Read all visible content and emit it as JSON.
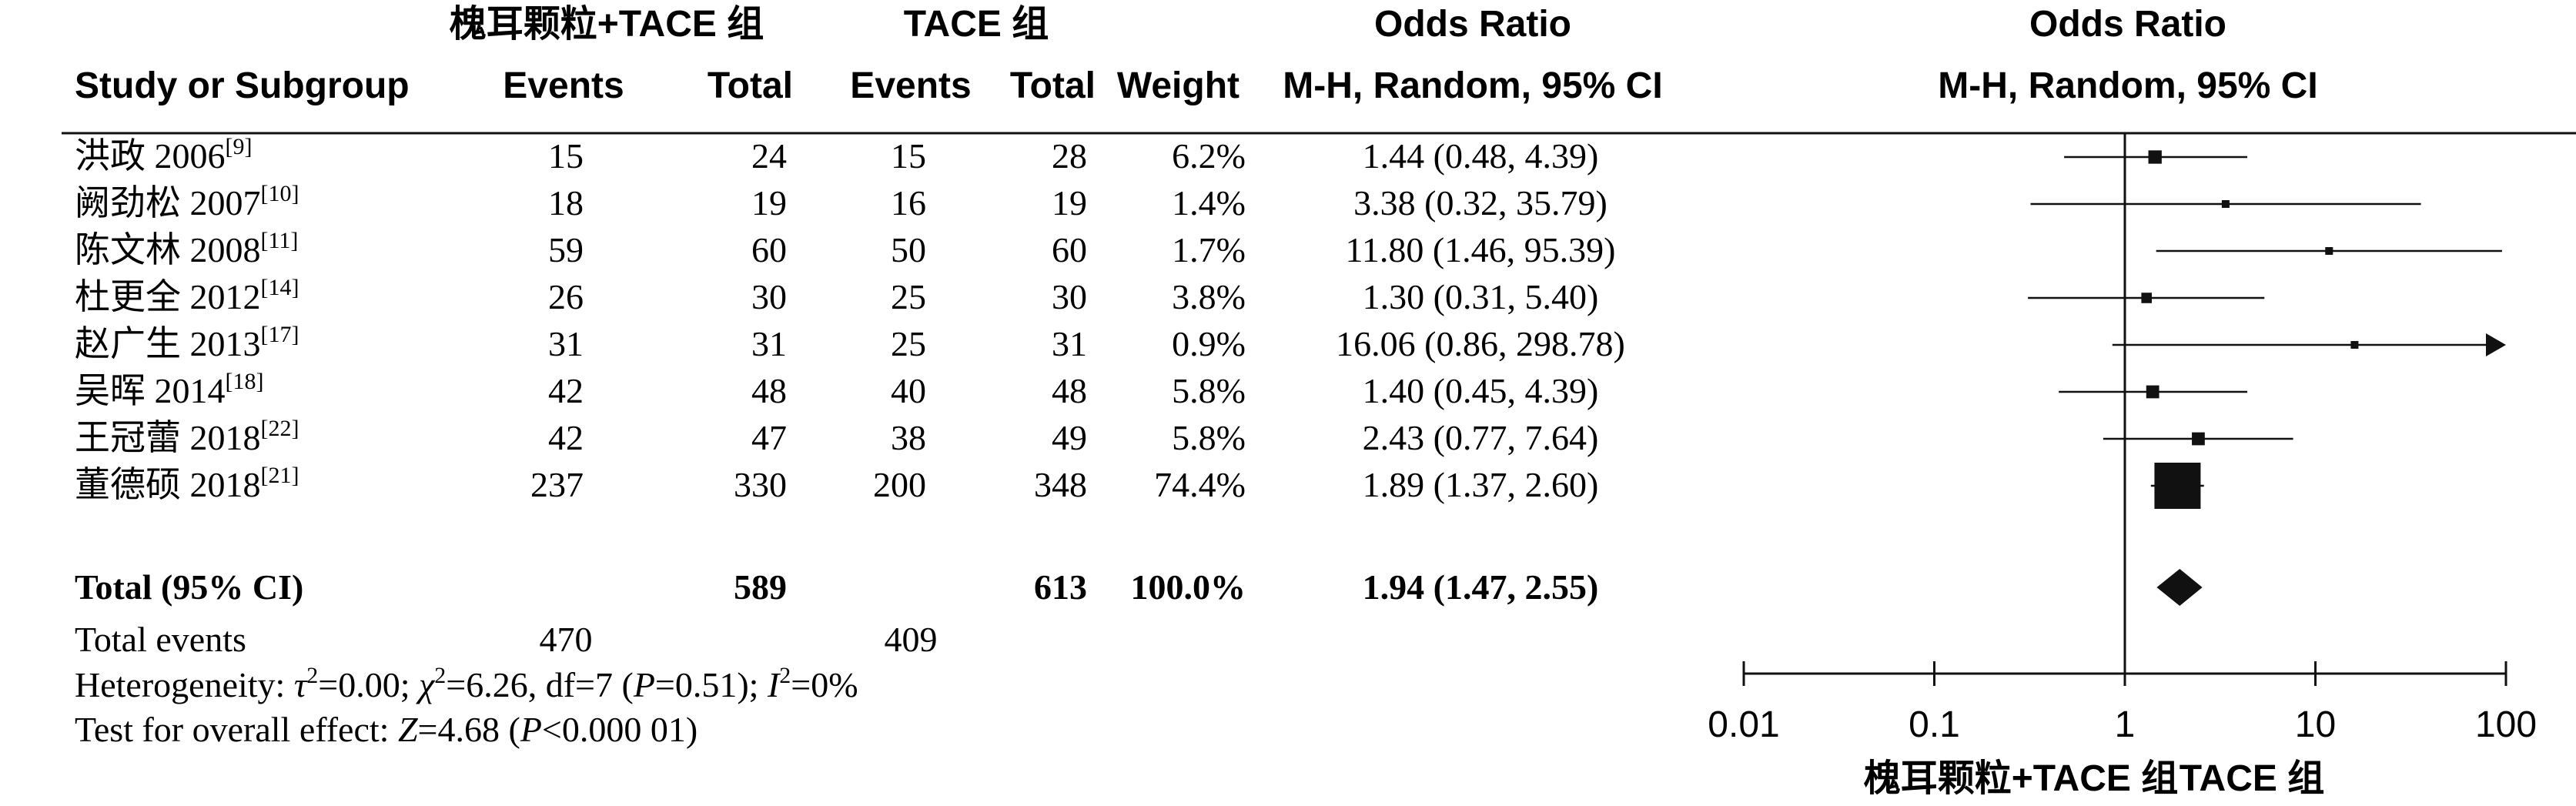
{
  "chart_data": {
    "type": "forest",
    "headers": {
      "exp_group": "槐耳颗粒+TACE 组",
      "ctl_group": "TACE 组",
      "study": "Study or Subgroup",
      "events": "Events",
      "total": "Total",
      "weight": "Weight",
      "or_title": "Odds Ratio",
      "or_method": "M-H, Random, 95% CI"
    },
    "studies": [
      {
        "name": "洪政 2006",
        "ref": "[9]",
        "exp_events": "15",
        "exp_total": "24",
        "ctl_events": "15",
        "ctl_total": "28",
        "weight": "6.2%",
        "ci_text": "1.44 (0.48, 4.39)",
        "or": 1.44,
        "lower": 0.48,
        "upper": 4.39
      },
      {
        "name": "阙劲松 2007",
        "ref": "[10]",
        "exp_events": "18",
        "exp_total": "19",
        "ctl_events": "16",
        "ctl_total": "19",
        "weight": "1.4%",
        "ci_text": "3.38 (0.32, 35.79)",
        "or": 3.38,
        "lower": 0.32,
        "upper": 35.79
      },
      {
        "name": "陈文林 2008",
        "ref": "[11]",
        "exp_events": "59",
        "exp_total": "60",
        "ctl_events": "50",
        "ctl_total": "60",
        "weight": "1.7%",
        "ci_text": "11.80 (1.46, 95.39)",
        "or": 11.8,
        "lower": 1.46,
        "upper": 95.39
      },
      {
        "name": "杜更全 2012",
        "ref": "[14]",
        "exp_events": "26",
        "exp_total": "30",
        "ctl_events": "25",
        "ctl_total": "30",
        "weight": "3.8%",
        "ci_text": "1.30 (0.31, 5.40)",
        "or": 1.3,
        "lower": 0.31,
        "upper": 5.4
      },
      {
        "name": "赵广生 2013",
        "ref": "[17]",
        "exp_events": "31",
        "exp_total": "31",
        "ctl_events": "25",
        "ctl_total": "31",
        "weight": "0.9%",
        "ci_text": "16.06 (0.86, 298.78)",
        "or": 16.06,
        "lower": 0.86,
        "upper": 298.78
      },
      {
        "name": "吴晖 2014",
        "ref": "[18]",
        "exp_events": "42",
        "exp_total": "48",
        "ctl_events": "40",
        "ctl_total": "48",
        "weight": "5.8%",
        "ci_text": "1.40 (0.45, 4.39)",
        "or": 1.4,
        "lower": 0.45,
        "upper": 4.39
      },
      {
        "name": "王冠蕾 2018",
        "ref": "[22]",
        "exp_events": "42",
        "exp_total": "47",
        "ctl_events": "38",
        "ctl_total": "49",
        "weight": "5.8%",
        "ci_text": "2.43 (0.77, 7.64)",
        "or": 2.43,
        "lower": 0.77,
        "upper": 7.64
      },
      {
        "name": "董德硕 2018",
        "ref": "[21]",
        "exp_events": "237",
        "exp_total": "330",
        "ctl_events": "200",
        "ctl_total": "348",
        "weight": "74.4%",
        "ci_text": "1.89 (1.37, 2.60)",
        "or": 1.89,
        "lower": 1.37,
        "upper": 2.6
      }
    ],
    "total": {
      "label": "Total (95% CI)",
      "exp_total": "589",
      "ctl_total": "613",
      "weight": "100.0%",
      "ci_text": "1.94 (1.47, 2.55)",
      "or": 1.94,
      "lower": 1.47,
      "upper": 2.55
    },
    "total_events": {
      "label": "Total events",
      "exp": "470",
      "ctl": "409"
    },
    "heterogeneity": {
      "label": "Heterogeneity: ",
      "tau_sym": "τ",
      "tau_rest": "=0.00; ",
      "chi_sym": "χ",
      "chi_rest": "=6.26, df=7 (",
      "p_sym": "P",
      "p_rest": "=0.51); ",
      "i_sym": "I",
      "i_rest": "=0%"
    },
    "overall_effect": {
      "label": "Test for overall effect: ",
      "z_sym": "Z",
      "z_rest": "=4.68 (",
      "p_sym": "P",
      "p_rest": "<0.000 01)"
    },
    "axis": {
      "scale": "log",
      "ticks": [
        0.01,
        0.1,
        1,
        10,
        100
      ],
      "tick_labels": [
        "0.01",
        "0.1",
        "1",
        "10",
        "100"
      ],
      "xlim": [
        0.01,
        100
      ],
      "left_label": "槐耳颗粒+TACE 组",
      "right_label": "TACE 组"
    }
  }
}
